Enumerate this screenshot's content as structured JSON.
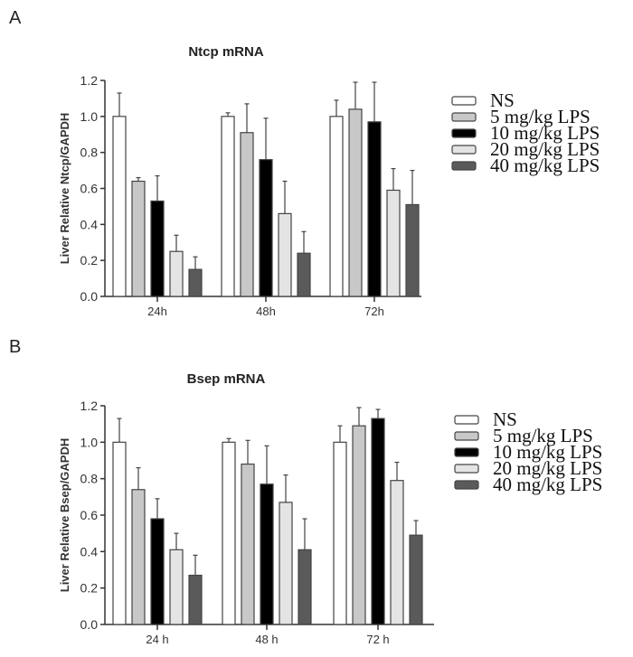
{
  "chart_data": [
    {
      "type": "bar",
      "panel_label": "A",
      "title": "Ntcp mRNA",
      "xlabel": "",
      "ylabel": "Liver Relative Ntcp/GAPDH",
      "ylim": [
        0,
        1.2
      ],
      "yticks": [
        "0.0",
        "0.2",
        "0.4",
        "0.6",
        "0.8",
        "1.0",
        "1.2"
      ],
      "categories": [
        "24h",
        "48h",
        "72h"
      ],
      "series": [
        {
          "name": "NS",
          "color": "#ffffff",
          "values": [
            1.0,
            1.0,
            1.0
          ],
          "errors": [
            0.13,
            0.02,
            0.09
          ]
        },
        {
          "name": "5 mg/kg LPS",
          "color": "#c8c8c8",
          "values": [
            0.64,
            0.91,
            1.04
          ],
          "errors": [
            0.02,
            0.16,
            0.15
          ]
        },
        {
          "name": "10 mg/kg LPS",
          "color": "#000000",
          "values": [
            0.53,
            0.76,
            0.97
          ],
          "errors": [
            0.14,
            0.23,
            0.22
          ]
        },
        {
          "name": "20 mg/kg LPS",
          "color": "#e4e4e4",
          "values": [
            0.25,
            0.46,
            0.59
          ],
          "errors": [
            0.09,
            0.18,
            0.12
          ]
        },
        {
          "name": "40 mg/kg LPS",
          "color": "#5a5a5a",
          "values": [
            0.15,
            0.24,
            0.51
          ],
          "errors": [
            0.07,
            0.12,
            0.19
          ]
        }
      ],
      "legend_position": "right",
      "grid": false
    },
    {
      "type": "bar",
      "panel_label": "B",
      "title": "Bsep mRNA",
      "xlabel": "",
      "ylabel": "Liver Relative Bsep/GAPDH",
      "ylim": [
        0,
        1.2
      ],
      "yticks": [
        "0.0",
        "0.2",
        "0.4",
        "0.6",
        "0.8",
        "1.0",
        "1.2"
      ],
      "categories": [
        "24 h",
        "48 h",
        "72 h"
      ],
      "series": [
        {
          "name": "NS",
          "color": "#ffffff",
          "values": [
            1.0,
            1.0,
            1.0
          ],
          "errors": [
            0.13,
            0.02,
            0.09
          ]
        },
        {
          "name": "5 mg/kg LPS",
          "color": "#c8c8c8",
          "values": [
            0.74,
            0.88,
            1.09
          ],
          "errors": [
            0.12,
            0.13,
            0.1
          ]
        },
        {
          "name": "10 mg/kg LPS",
          "color": "#000000",
          "values": [
            0.58,
            0.77,
            1.13
          ],
          "errors": [
            0.11,
            0.21,
            0.05
          ]
        },
        {
          "name": "20 mg/kg LPS",
          "color": "#e4e4e4",
          "values": [
            0.41,
            0.67,
            0.79
          ],
          "errors": [
            0.09,
            0.15,
            0.1
          ]
        },
        {
          "name": "40 mg/kg LPS",
          "color": "#5a5a5a",
          "values": [
            0.27,
            0.41,
            0.49
          ],
          "errors": [
            0.11,
            0.17,
            0.08
          ]
        }
      ],
      "legend_position": "right",
      "grid": false
    }
  ]
}
